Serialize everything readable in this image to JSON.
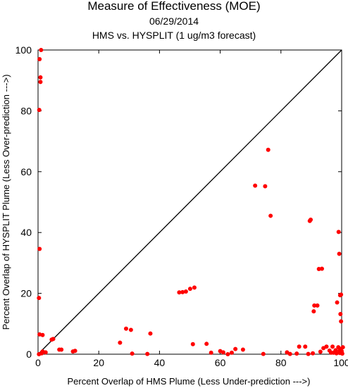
{
  "chart_data": {
    "type": "scatter",
    "title": "Measure of Effectiveness (MOE)",
    "subtitle": "06/29/2014",
    "subtitle2": "HMS vs. HYSPLIT  (1 ug/m3 forecast)",
    "xlabel": "Percent Overlap of HMS Plume (Less Under-prediction --->)",
    "ylabel": "Percent Overlap of HYSPLIT Plume (Less Over-prediction --->)",
    "xlim": [
      0,
      100
    ],
    "ylim": [
      0,
      100
    ],
    "x_ticks": [
      0,
      20,
      40,
      60,
      80,
      100
    ],
    "y_ticks": [
      0,
      20,
      40,
      60,
      80,
      100
    ],
    "reference_line": "y = x",
    "point_color": "#ff0000",
    "points": [
      [
        1,
        100
      ],
      [
        0.5,
        97
      ],
      [
        0.8,
        91
      ],
      [
        0.8,
        89.5
      ],
      [
        0.4,
        80.3
      ],
      [
        0.5,
        34.6
      ],
      [
        0.3,
        18.5
      ],
      [
        0.5,
        6.5
      ],
      [
        1.5,
        6.3
      ],
      [
        4.5,
        4.8
      ],
      [
        5,
        5
      ],
      [
        7,
        1.5
      ],
      [
        7.7,
        1.5
      ],
      [
        11.5,
        0.9
      ],
      [
        12.2,
        1.1
      ],
      [
        1.5,
        0.9
      ],
      [
        2.5,
        0.6
      ],
      [
        0.3,
        0
      ],
      [
        1.2,
        0.3
      ],
      [
        27,
        3.8
      ],
      [
        29,
        8.4
      ],
      [
        30.6,
        8
      ],
      [
        31,
        0.2
      ],
      [
        36,
        0.1
      ],
      [
        37,
        6.8
      ],
      [
        46.5,
        20.3
      ],
      [
        47.6,
        20.4
      ],
      [
        48.7,
        20.6
      ],
      [
        50.1,
        21.5
      ],
      [
        51.5,
        21.9
      ],
      [
        51,
        3.3
      ],
      [
        55.5,
        3.4
      ],
      [
        57,
        0.5
      ],
      [
        60,
        1
      ],
      [
        61,
        0.6
      ],
      [
        62.5,
        0
      ],
      [
        63.8,
        0.5
      ],
      [
        65,
        1.7
      ],
      [
        67.5,
        1.5
      ],
      [
        71.5,
        55.4
      ],
      [
        74.8,
        55.2
      ],
      [
        75.8,
        67.2
      ],
      [
        76.6,
        45.5
      ],
      [
        74.2,
        0.1
      ],
      [
        82,
        0.6
      ],
      [
        83,
        0.1
      ],
      [
        85.2,
        0.2
      ],
      [
        86,
        2.5
      ],
      [
        88,
        2.5
      ],
      [
        89.5,
        43.8
      ],
      [
        89.8,
        44.2
      ],
      [
        90.8,
        14.1
      ],
      [
        91,
        16
      ],
      [
        92,
        16
      ],
      [
        92.5,
        28
      ],
      [
        93.5,
        28.1
      ],
      [
        89,
        0.1
      ],
      [
        90.5,
        0.3
      ],
      [
        93,
        0.8
      ],
      [
        94,
        2
      ],
      [
        95,
        2.5
      ],
      [
        96,
        1.2
      ],
      [
        96.5,
        0.5
      ],
      [
        97,
        2.5
      ],
      [
        98.5,
        17
      ],
      [
        99,
        40.2
      ],
      [
        99.2,
        33
      ],
      [
        99.5,
        19.4
      ],
      [
        99.8,
        19.6
      ],
      [
        99.6,
        13.2
      ],
      [
        99.8,
        10.8
      ],
      [
        98,
        1.3
      ],
      [
        98.3,
        0.3
      ],
      [
        98.9,
        2.3
      ],
      [
        99.4,
        0.4
      ],
      [
        99.6,
        1.7
      ],
      [
        100,
        1
      ],
      [
        100.2,
        0.2
      ],
      [
        100.4,
        2.3
      ],
      [
        99.3,
        1.1
      ],
      [
        97.3,
        0.5
      ]
    ]
  }
}
